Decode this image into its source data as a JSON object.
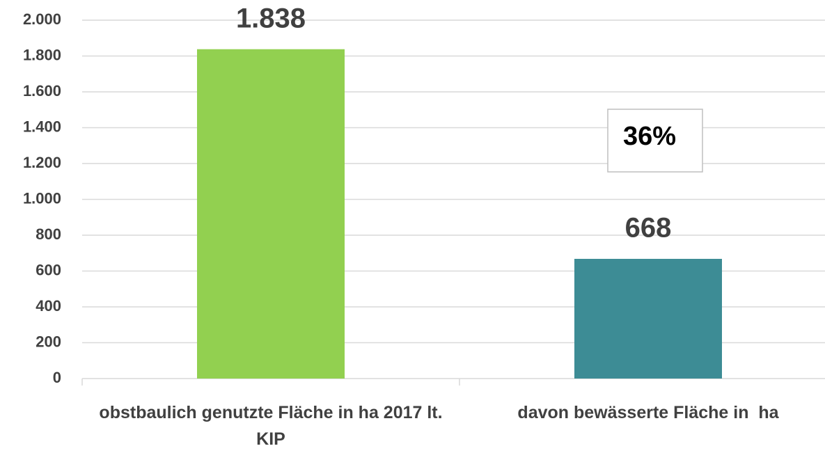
{
  "chart_data": {
    "type": "bar",
    "categories": [
      "obstbaulich genutzte Fläche in ha 2017 lt. KIP",
      "davon bewässerte Fläche in  ha"
    ],
    "values": [
      1838,
      668
    ],
    "value_labels": [
      "1.838",
      "668"
    ],
    "colors": [
      "#92d050",
      "#3d8c95"
    ],
    "ylim": [
      0,
      2000
    ],
    "yticks": [
      0,
      200,
      400,
      600,
      800,
      {
        "value": 1000,
        "label": "1.000"
      },
      {
        "value": 1200,
        "label": "1.200"
      },
      {
        "value": 1400,
        "label": "1.400"
      },
      {
        "value": 1600,
        "label": "1.600"
      },
      {
        "value": 1800,
        "label": "1.800"
      },
      {
        "value": 2000,
        "label": "2.000"
      }
    ],
    "grid": true,
    "annotation": "36%"
  }
}
